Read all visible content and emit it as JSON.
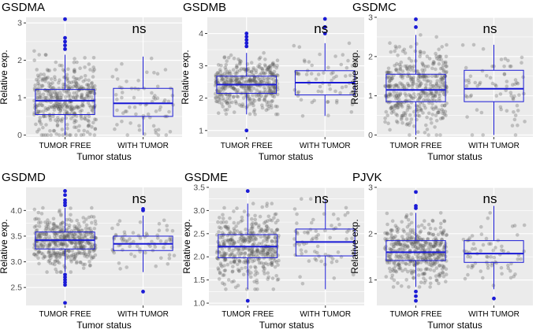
{
  "colors": {
    "panel_bg": "#ebebeb",
    "grid": "#ffffff",
    "box": "#1a1ad6",
    "jitter": "#555555",
    "text": "#000000",
    "tick": "#4d4d4d"
  },
  "chart_data": [
    {
      "type": "box",
      "title": "GSDMA",
      "xlabel": "Tumor status",
      "ylabel": "Relative exp.",
      "categories": [
        "TUMOR FREE",
        "WITH TUMOR"
      ],
      "ylim": [
        -0.05,
        3.15
      ],
      "yticks": [
        0,
        1,
        2,
        3
      ],
      "annotation": "ns",
      "boxes": [
        {
          "q1": 0.55,
          "median": 0.92,
          "q3": 1.22,
          "lower": 0.0,
          "upper": 2.15,
          "n": 420,
          "outliers": [
            2.3,
            2.4,
            2.5,
            2.6,
            3.1
          ]
        },
        {
          "q1": 0.5,
          "median": 0.85,
          "q3": 1.25,
          "lower": 0.0,
          "upper": 2.1,
          "n": 70,
          "outliers": []
        }
      ]
    },
    {
      "type": "box",
      "title": "GSDMB",
      "xlabel": "Tumor status",
      "ylabel": "Relative exp.",
      "categories": [
        "TUMOR FREE",
        "WITH TUMOR"
      ],
      "ylim": [
        0.8,
        4.5
      ],
      "yticks": [
        1,
        2,
        3,
        4
      ],
      "annotation": "ns",
      "boxes": [
        {
          "q1": 2.15,
          "median": 2.42,
          "q3": 2.68,
          "lower": 1.5,
          "upper": 3.4,
          "n": 420,
          "outliers": [
            1.0,
            3.6,
            3.7,
            3.8,
            3.9,
            4.0
          ]
        },
        {
          "q1": 2.1,
          "median": 2.48,
          "q3": 2.85,
          "lower": 1.45,
          "upper": 3.7,
          "n": 70,
          "outliers": [
            4.0,
            4.2,
            4.45
          ]
        }
      ]
    },
    {
      "type": "box",
      "title": "GSDMC",
      "xlabel": "Tumor status",
      "ylabel": "Relative exp.",
      "categories": [
        "TUMOR FREE",
        "WITH TUMOR"
      ],
      "ylim": [
        -0.05,
        3.0
      ],
      "yticks": [
        0,
        1,
        2,
        3
      ],
      "annotation": "ns",
      "boxes": [
        {
          "q1": 0.85,
          "median": 1.15,
          "q3": 1.55,
          "lower": 0.0,
          "upper": 2.55,
          "n": 420,
          "outliers": [
            2.75,
            2.95
          ]
        },
        {
          "q1": 0.85,
          "median": 1.18,
          "q3": 1.65,
          "lower": 0.0,
          "upper": 2.3,
          "n": 70,
          "outliers": []
        }
      ]
    },
    {
      "type": "box",
      "title": "GSDMD",
      "xlabel": "Tumor status",
      "ylabel": "Relative exp.",
      "categories": [
        "TUMOR FREE",
        "WITH TUMOR"
      ],
      "ylim": [
        2.15,
        4.45
      ],
      "yticks": [
        2.5,
        3.0,
        3.5,
        4.0
      ],
      "annotation": "ns",
      "boxes": [
        {
          "q1": 3.25,
          "median": 3.42,
          "q3": 3.58,
          "lower": 2.8,
          "upper": 4.05,
          "n": 420,
          "outliers": [
            2.2,
            2.55,
            2.6,
            2.65,
            2.7,
            2.75,
            4.1,
            4.15,
            4.2,
            4.3,
            4.38
          ]
        },
        {
          "q1": 3.22,
          "median": 3.35,
          "q3": 3.5,
          "lower": 2.8,
          "upper": 3.9,
          "n": 70,
          "outliers": [
            2.42,
            4.0,
            4.03
          ]
        }
      ]
    },
    {
      "type": "box",
      "title": "GSDME",
      "xlabel": "Tumor status",
      "ylabel": "Relative exp.",
      "categories": [
        "TUMOR FREE",
        "WITH TUMOR"
      ],
      "ylim": [
        0.95,
        3.5
      ],
      "yticks": [
        1.0,
        1.5,
        2.0,
        2.5,
        3.0,
        3.5
      ],
      "annotation": "ns",
      "boxes": [
        {
          "q1": 1.98,
          "median": 2.22,
          "q3": 2.48,
          "lower": 1.3,
          "upper": 3.15,
          "n": 420,
          "outliers": [
            1.05,
            3.42
          ]
        },
        {
          "q1": 2.02,
          "median": 2.32,
          "q3": 2.6,
          "lower": 1.3,
          "upper": 3.25,
          "n": 70,
          "outliers": []
        }
      ]
    },
    {
      "type": "box",
      "title": "PJVK",
      "xlabel": "Tumor status",
      "ylabel": "Relative exp.",
      "categories": [
        "TUMOR FREE",
        "WITH TUMOR"
      ],
      "ylim": [
        0.45,
        3.0
      ],
      "yticks": [
        1,
        2,
        3
      ],
      "annotation": "ns",
      "boxes": [
        {
          "q1": 1.42,
          "median": 1.6,
          "q3": 1.85,
          "lower": 0.85,
          "upper": 2.45,
          "n": 420,
          "outliers": [
            0.55,
            0.65,
            0.75,
            2.55,
            2.6,
            2.9
          ]
        },
        {
          "q1": 1.38,
          "median": 1.57,
          "q3": 1.85,
          "lower": 0.8,
          "upper": 2.6,
          "n": 70,
          "outliers": [
            0.6
          ]
        }
      ]
    }
  ]
}
